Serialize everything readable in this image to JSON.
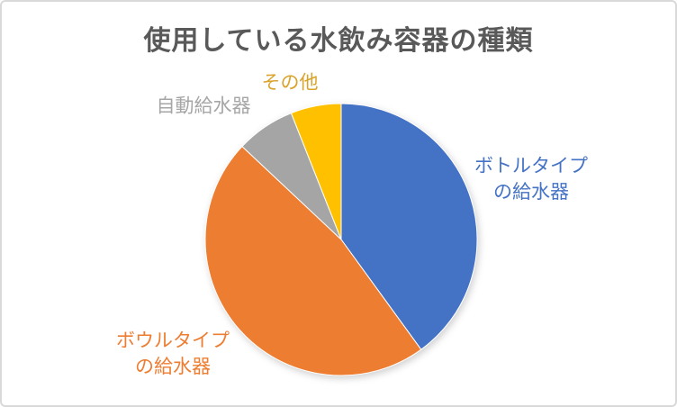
{
  "title": {
    "text": "使用している水飲み容器の種類",
    "color": "#595959"
  },
  "chart_data": {
    "type": "pie",
    "title": "使用している水飲み容器の種類",
    "categories": [
      "ボトルタイプの給水器",
      "ボウルタイプの給水器",
      "自動給水器",
      "その他"
    ],
    "values": [
      40,
      47,
      7,
      6
    ],
    "unit": "percent",
    "colors": [
      "#4472C4",
      "#ED7D31",
      "#A5A5A5",
      "#FFC000"
    ],
    "start_angle_deg": 0,
    "direction": "clockwise",
    "legend": "none",
    "grid": "off",
    "data_labels": "category names outside, colored to match slices",
    "slice_border_color": "#ffffff"
  },
  "labels": {
    "bottle": {
      "line1": "ボトルタイプ",
      "line2": "の給水器",
      "color": "#4472C4"
    },
    "bowl": {
      "line1": "ボウルタイプ",
      "line2": "の給水器",
      "color": "#ED7D31"
    },
    "auto": {
      "text": "自動給水器",
      "color": "#A6A6A6"
    },
    "other": {
      "text": "その他",
      "color": "#D9A32A"
    }
  }
}
